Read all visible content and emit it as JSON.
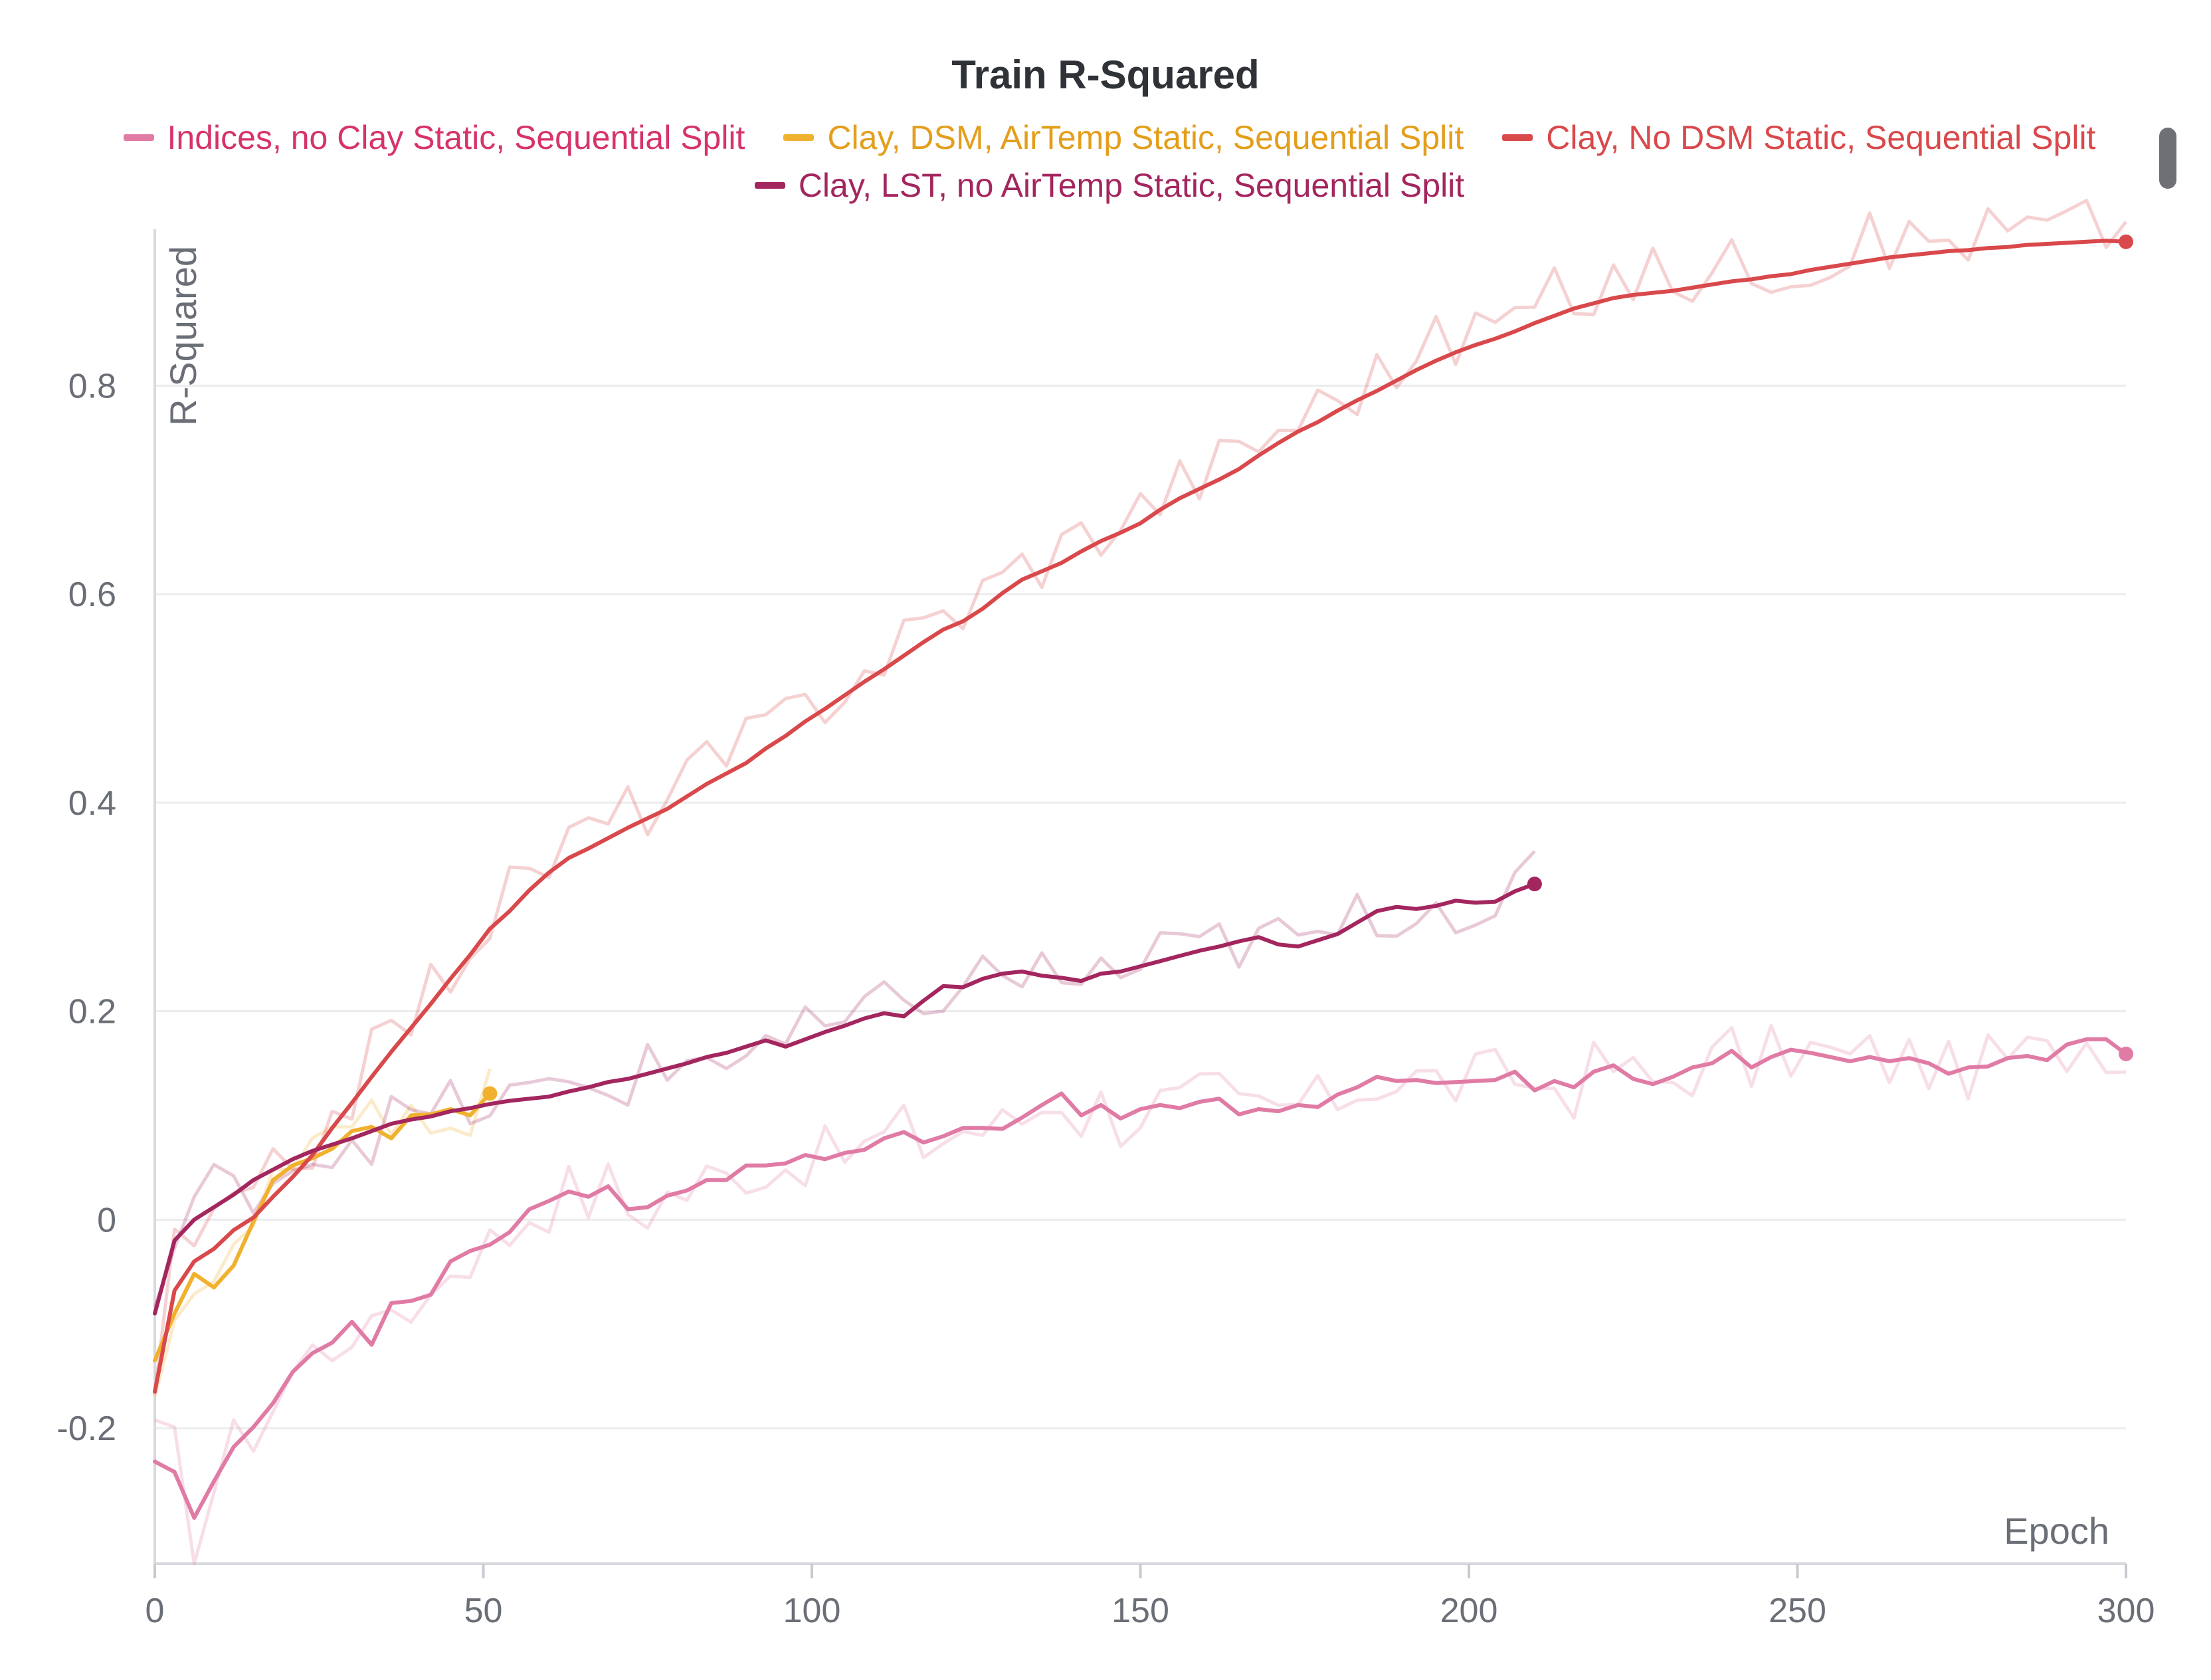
{
  "chart_data": {
    "type": "line",
    "title": "Train R-Squared",
    "xlabel": "Epoch",
    "ylabel": "R-Squared",
    "xlim": [
      0,
      300
    ],
    "ylim": [
      -0.33,
      0.95
    ],
    "x_ticks": [
      0,
      50,
      100,
      150,
      200,
      250,
      300
    ],
    "x_tick_labels": [
      "0",
      "50",
      "100",
      "150",
      "200",
      "250",
      "300"
    ],
    "y_ticks": [
      -0.2,
      0,
      0.2,
      0.4,
      0.6,
      0.8
    ],
    "y_tick_labels": [
      "-0.2",
      "0",
      "0.2",
      "0.4",
      "0.6",
      "0.8"
    ],
    "grid": true,
    "legend_position": "top",
    "series": [
      {
        "name": "Indices, no Clay Static, Sequential Split",
        "color": "#e07ba5",
        "label_color": "#d6336c",
        "x": [
          0,
          3,
          6,
          9,
          12,
          15,
          18,
          21,
          24,
          27,
          30,
          33,
          36,
          39,
          42,
          45,
          48,
          51,
          54,
          57,
          60,
          63,
          66,
          69,
          72,
          75,
          78,
          81,
          84,
          87,
          90,
          93,
          96,
          99,
          102,
          105,
          108,
          111,
          114,
          117,
          120,
          123,
          126,
          129,
          132,
          135,
          138,
          141,
          144,
          147,
          150,
          153,
          156,
          159,
          162,
          165,
          168,
          171,
          174,
          177,
          180,
          183,
          186,
          189,
          192,
          195,
          198,
          201,
          204,
          207,
          210,
          213,
          216,
          219,
          222,
          225,
          228,
          231,
          234,
          237,
          240,
          243,
          246,
          249,
          252,
          255,
          258,
          261,
          264,
          267,
          270,
          273,
          276,
          279,
          282,
          285,
          288,
          291,
          294,
          297,
          300
        ],
        "smoothed": [
          -0.232,
          -0.242,
          -0.286,
          -0.251,
          -0.218,
          -0.199,
          -0.176,
          -0.146,
          -0.128,
          -0.118,
          -0.098,
          -0.12,
          -0.08,
          -0.078,
          -0.072,
          -0.04,
          -0.03,
          -0.024,
          -0.012,
          0.01,
          0.018,
          0.027,
          0.022,
          0.032,
          0.01,
          0.012,
          0.023,
          0.028,
          0.038,
          0.038,
          0.052,
          0.052,
          0.054,
          0.062,
          0.058,
          0.064,
          0.067,
          0.078,
          0.084,
          0.074,
          0.08,
          0.088,
          0.088,
          0.087,
          0.098,
          0.11,
          0.121,
          0.1,
          0.11,
          0.097,
          0.106,
          0.11,
          0.107,
          0.113,
          0.116,
          0.101,
          0.106,
          0.104,
          0.11,
          0.108,
          0.12,
          0.127,
          0.137,
          0.133,
          0.134,
          0.131,
          0.132,
          0.133,
          0.134,
          0.142,
          0.124,
          0.133,
          0.127,
          0.142,
          0.148,
          0.135,
          0.13,
          0.137,
          0.146,
          0.15,
          0.162,
          0.146,
          0.156,
          0.163,
          0.16,
          0.156,
          0.152,
          0.156,
          0.152,
          0.155,
          0.15,
          0.14,
          0.146,
          0.147,
          0.155,
          0.157,
          0.153,
          0.168,
          0.173,
          0.173,
          0.159
        ]
      },
      {
        "name": "Clay, DSM, AirTemp Static, Sequential Split",
        "color": "#f0b12e",
        "label_color": "#e39e1b",
        "x": [
          0,
          3,
          6,
          9,
          12,
          15,
          18,
          21,
          24,
          27,
          30,
          33,
          36,
          39,
          42,
          45,
          48,
          51
        ],
        "smoothed": [
          -0.135,
          -0.09,
          -0.052,
          -0.065,
          -0.044,
          -0.002,
          0.038,
          0.052,
          0.059,
          0.068,
          0.085,
          0.089,
          0.078,
          0.1,
          0.101,
          0.106,
          0.1,
          0.121
        ]
      },
      {
        "name": "Clay, No DSM Static, Sequential Split",
        "color": "#d9484b",
        "label_color": "#d9484b",
        "x": [
          0,
          3,
          6,
          9,
          12,
          15,
          18,
          21,
          24,
          27,
          30,
          33,
          36,
          39,
          42,
          45,
          48,
          51,
          54,
          57,
          60,
          63,
          66,
          69,
          72,
          75,
          78,
          81,
          84,
          87,
          90,
          93,
          96,
          99,
          102,
          105,
          108,
          111,
          114,
          117,
          120,
          123,
          126,
          129,
          132,
          135,
          138,
          141,
          144,
          147,
          150,
          153,
          156,
          159,
          162,
          165,
          168,
          171,
          174,
          177,
          180,
          183,
          186,
          189,
          192,
          195,
          198,
          201,
          204,
          207,
          210,
          213,
          216,
          219,
          222,
          225,
          228,
          231,
          234,
          237,
          240,
          243,
          246,
          249,
          252,
          255,
          258,
          261,
          264,
          267,
          270,
          273,
          276,
          279,
          282,
          285,
          288,
          291,
          294,
          297,
          300
        ],
        "smoothed": [
          -0.165,
          -0.068,
          -0.04,
          -0.028,
          -0.01,
          0.002,
          0.022,
          0.041,
          0.062,
          0.088,
          0.112,
          0.137,
          0.161,
          0.184,
          0.207,
          0.231,
          0.254,
          0.279,
          0.296,
          0.316,
          0.333,
          0.347,
          0.356,
          0.366,
          0.376,
          0.385,
          0.394,
          0.406,
          0.418,
          0.428,
          0.438,
          0.452,
          0.464,
          0.478,
          0.49,
          0.503,
          0.516,
          0.528,
          0.541,
          0.554,
          0.566,
          0.574,
          0.586,
          0.601,
          0.614,
          0.622,
          0.63,
          0.641,
          0.651,
          0.659,
          0.668,
          0.681,
          0.692,
          0.701,
          0.71,
          0.72,
          0.733,
          0.745,
          0.756,
          0.765,
          0.776,
          0.786,
          0.795,
          0.805,
          0.815,
          0.824,
          0.832,
          0.839,
          0.845,
          0.852,
          0.86,
          0.867,
          0.874,
          0.879,
          0.884,
          0.887,
          0.889,
          0.891,
          0.894,
          0.897,
          0.9,
          0.902,
          0.905,
          0.907,
          0.911,
          0.914,
          0.917,
          0.92,
          0.923,
          0.925,
          0.927,
          0.929,
          0.93,
          0.932,
          0.933,
          0.935,
          0.936,
          0.937,
          0.938,
          0.939,
          0.938
        ]
      },
      {
        "name": "Clay, LST, no AirTemp Static, Sequential Split",
        "color": "#a3265e",
        "label_color": "#a3265e",
        "x": [
          0,
          3,
          6,
          9,
          12,
          15,
          18,
          21,
          24,
          27,
          30,
          33,
          36,
          39,
          42,
          45,
          48,
          51,
          54,
          57,
          60,
          63,
          66,
          69,
          72,
          75,
          78,
          81,
          84,
          87,
          90,
          93,
          96,
          99,
          102,
          105,
          108,
          111,
          114,
          117,
          120,
          123,
          126,
          129,
          132,
          135,
          138,
          141,
          144,
          147,
          150,
          153,
          156,
          159,
          162,
          165,
          168,
          171,
          174,
          177,
          180,
          183,
          186,
          189,
          192,
          195,
          198,
          201,
          204,
          207,
          210
        ],
        "smoothed": [
          -0.09,
          -0.02,
          0.0,
          0.012,
          0.024,
          0.038,
          0.048,
          0.058,
          0.066,
          0.072,
          0.078,
          0.085,
          0.092,
          0.096,
          0.099,
          0.104,
          0.107,
          0.111,
          0.114,
          0.116,
          0.118,
          0.123,
          0.127,
          0.132,
          0.135,
          0.14,
          0.145,
          0.15,
          0.156,
          0.16,
          0.166,
          0.172,
          0.166,
          0.173,
          0.18,
          0.186,
          0.193,
          0.198,
          0.195,
          0.21,
          0.224,
          0.223,
          0.231,
          0.236,
          0.238,
          0.234,
          0.232,
          0.229,
          0.236,
          0.238,
          0.243,
          0.248,
          0.253,
          0.258,
          0.262,
          0.267,
          0.271,
          0.264,
          0.262,
          0.268,
          0.274,
          0.285,
          0.296,
          0.3,
          0.298,
          0.301,
          0.306,
          0.304,
          0.305,
          0.315,
          0.322
        ]
      }
    ]
  }
}
